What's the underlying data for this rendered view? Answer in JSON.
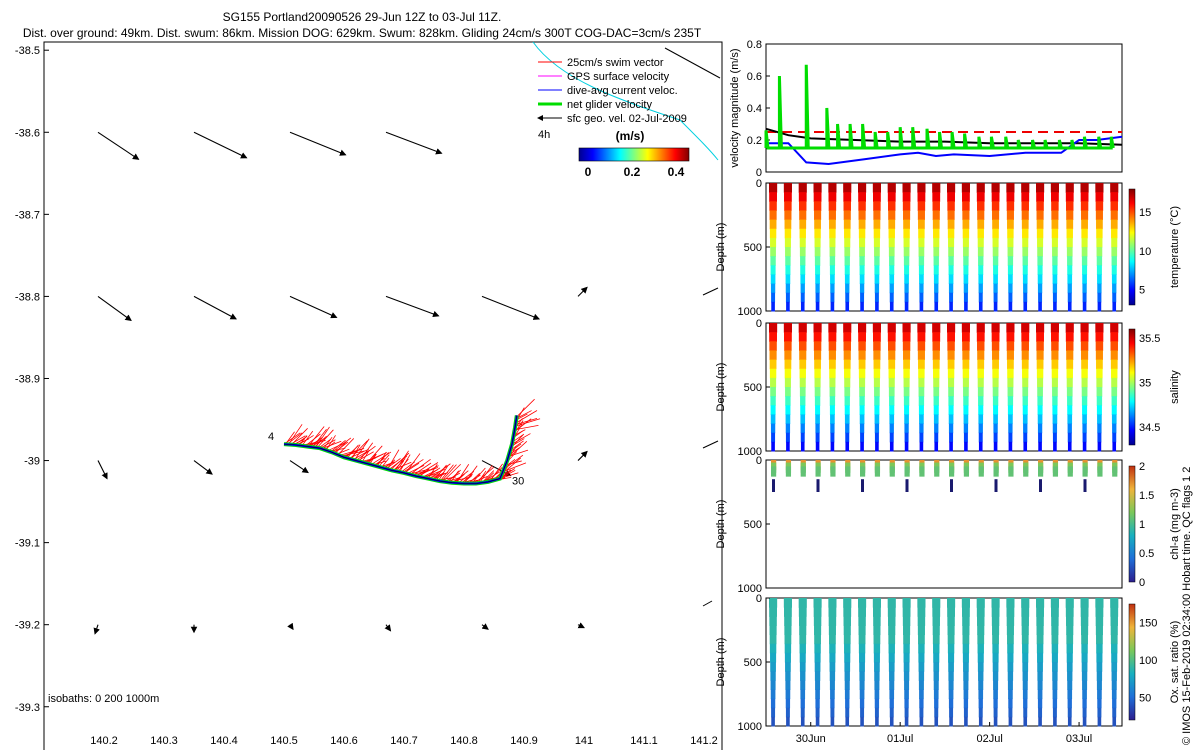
{
  "header": {
    "title": "SG155 Portland20090526 29-Jun 12Z to 03-Jul 11Z.",
    "subtitle": "Dist. over ground: 49km. Dist. swum: 86km. Mission DOG: 629km. Swum: 828km. Gliding 24cm/s 300T COG-DAC=3cm/s 235T"
  },
  "colors": {
    "swim": "#ff0000",
    "gps": "#ff00ff",
    "dac": "#0000ff",
    "net": "#00dd00",
    "geo": "#000000",
    "ref_line": "#ee0000",
    "scale_line": "#00d0e0"
  },
  "chart_data": [
    {
      "type": "scatter",
      "name": "track-map",
      "xlim": [
        140.1,
        141.23
      ],
      "ylim": [
        -39.36,
        -38.49
      ],
      "xticks": [
        140.2,
        140.3,
        140.4,
        140.5,
        140.6,
        140.7,
        140.8,
        140.9,
        141.0,
        141.1,
        141.2
      ],
      "xtick_labels": [
        "140.2",
        "140.3",
        "140.4",
        "140.5",
        "140.6",
        "140.7",
        "140.8",
        "140.9",
        "141",
        "141.1",
        "141.2"
      ],
      "yticks": [
        -38.5,
        -38.6,
        -38.7,
        -38.8,
        -38.9,
        -39.0,
        -39.1,
        -39.2,
        -39.3
      ],
      "ytick_labels": [
        "-38.5",
        "-38.6",
        "-38.7",
        "-38.8",
        "-38.9",
        "-39",
        "-39.1",
        "-39.2",
        "-39.3"
      ],
      "legend": [
        {
          "label": "25cm/s swim vector",
          "color": "#ff0000"
        },
        {
          "label": "GPS surface velocity",
          "color": "#ff00ff"
        },
        {
          "label": "dive-avg current veloc.",
          "color": "#0000ff"
        },
        {
          "label": "net glider velocity",
          "color": "#00dd00"
        },
        {
          "label": "sfc geo. vel. 02-Jul-2009",
          "color": "#000000"
        }
      ],
      "time_scale_label": "4h",
      "colorbar": {
        "title": "(m/s)",
        "ticks": [
          0,
          0.2,
          0.4
        ],
        "tick_labels": [
          "0",
          "0.2",
          "0.4"
        ],
        "range": [
          0,
          0.5
        ]
      },
      "isobaths_label": "isobaths: 0   200   1000m",
      "track_start_label": "4",
      "track_end_label": "30",
      "track": [
        [
          140.5,
          -38.98
        ],
        [
          140.52,
          -38.981
        ],
        [
          140.54,
          -38.983
        ],
        [
          140.56,
          -38.985
        ],
        [
          140.58,
          -38.99
        ],
        [
          140.6,
          -38.996
        ],
        [
          140.62,
          -39.0
        ],
        [
          140.64,
          -39.004
        ],
        [
          140.66,
          -39.008
        ],
        [
          140.68,
          -39.012
        ],
        [
          140.7,
          -39.015
        ],
        [
          140.72,
          -39.019
        ],
        [
          140.74,
          -39.022
        ],
        [
          140.76,
          -39.025
        ],
        [
          140.78,
          -39.027
        ],
        [
          140.8,
          -39.028
        ],
        [
          140.82,
          -39.028
        ],
        [
          140.84,
          -39.026
        ],
        [
          140.86,
          -39.022
        ],
        [
          140.872,
          -39.0
        ],
        [
          140.88,
          -38.98
        ],
        [
          140.885,
          -38.96
        ],
        [
          140.888,
          -38.945
        ]
      ],
      "current_vectors": [
        {
          "lon": 140.19,
          "lat": -38.6,
          "u": 0.27,
          "v": -0.18
        },
        {
          "lon": 140.35,
          "lat": -38.6,
          "u": 0.35,
          "v": -0.17
        },
        {
          "lon": 140.51,
          "lat": -38.6,
          "u": 0.37,
          "v": -0.15
        },
        {
          "lon": 140.67,
          "lat": -38.6,
          "u": 0.37,
          "v": -0.14
        },
        {
          "lon": 140.19,
          "lat": -38.8,
          "u": 0.22,
          "v": -0.16
        },
        {
          "lon": 140.35,
          "lat": -38.8,
          "u": 0.28,
          "v": -0.15
        },
        {
          "lon": 140.51,
          "lat": -38.8,
          "u": 0.31,
          "v": -0.14
        },
        {
          "lon": 140.67,
          "lat": -38.8,
          "u": 0.35,
          "v": -0.13
        },
        {
          "lon": 140.83,
          "lat": -38.8,
          "u": 0.38,
          "v": -0.15
        },
        {
          "lon": 140.99,
          "lat": -38.8,
          "u": 0.06,
          "v": 0.06
        },
        {
          "lon": 140.19,
          "lat": -39.0,
          "u": 0.06,
          "v": -0.12
        },
        {
          "lon": 140.35,
          "lat": -39.0,
          "u": 0.12,
          "v": -0.09
        },
        {
          "lon": 140.51,
          "lat": -39.0,
          "u": 0.12,
          "v": -0.08
        },
        {
          "lon": 140.83,
          "lat": -39.0,
          "u": 0.19,
          "v": -0.1
        },
        {
          "lon": 140.99,
          "lat": -39.0,
          "u": 0.06,
          "v": 0.06
        },
        {
          "lon": 140.19,
          "lat": -39.2,
          "u": -0.02,
          "v": -0.06
        },
        {
          "lon": 140.35,
          "lat": -39.2,
          "u": 0.0,
          "v": -0.05
        },
        {
          "lon": 140.51,
          "lat": -39.2,
          "u": 0.02,
          "v": -0.03
        },
        {
          "lon": 140.67,
          "lat": -39.2,
          "u": 0.03,
          "v": -0.04
        },
        {
          "lon": 140.83,
          "lat": -39.2,
          "u": 0.04,
          "v": -0.03
        },
        {
          "lon": 140.99,
          "lat": -39.2,
          "u": 0.04,
          "v": -0.02
        }
      ]
    },
    {
      "type": "line",
      "name": "velocity-magnitude",
      "ylabel": "velocity magnitude (m/s)",
      "ylim": [
        0,
        0.8
      ],
      "yticks": [
        0,
        0.2,
        0.4,
        0.6,
        0.8
      ],
      "ytick_labels": [
        "0",
        "0.2",
        "0.4",
        "0.6",
        "0.8"
      ],
      "xlim": [
        29.5,
        33.48
      ],
      "series": [
        {
          "name": "swim speed (25cm/s)",
          "color": "#ee0000",
          "dashed": true,
          "x": [
            29.5,
            33.48
          ],
          "values": [
            0.25,
            0.25
          ]
        },
        {
          "name": "geostrophic",
          "color": "#000000",
          "x": [
            29.5,
            29.75,
            30.0,
            30.5,
            31.0,
            31.5,
            32.0,
            32.5,
            33.0,
            33.48
          ],
          "values": [
            0.27,
            0.23,
            0.21,
            0.2,
            0.19,
            0.19,
            0.18,
            0.18,
            0.18,
            0.17
          ]
        },
        {
          "name": "dive-avg current",
          "color": "#0000ff",
          "x": [
            29.5,
            29.75,
            29.95,
            30.2,
            30.6,
            31.0,
            31.2,
            31.4,
            31.6,
            32.0,
            32.4,
            32.8,
            33.0,
            33.2,
            33.48
          ],
          "values": [
            0.18,
            0.18,
            0.06,
            0.05,
            0.08,
            0.11,
            0.12,
            0.1,
            0.11,
            0.1,
            0.12,
            0.12,
            0.2,
            0.2,
            0.22
          ]
        },
        {
          "name": "net glider velocity",
          "color": "#00dd00",
          "spikes": [
            [
              29.5,
              0.26
            ],
            [
              29.65,
              0.6
            ],
            [
              29.95,
              0.67
            ],
            [
              30.18,
              0.4
            ],
            [
              30.3,
              0.3
            ],
            [
              30.44,
              0.3
            ],
            [
              30.58,
              0.3
            ],
            [
              30.72,
              0.25
            ],
            [
              30.86,
              0.25
            ],
            [
              31.0,
              0.28
            ],
            [
              31.14,
              0.28
            ],
            [
              31.3,
              0.27
            ],
            [
              31.44,
              0.25
            ],
            [
              31.58,
              0.25
            ],
            [
              31.72,
              0.24
            ],
            [
              31.88,
              0.22
            ],
            [
              32.02,
              0.22
            ],
            [
              32.18,
              0.22
            ],
            [
              32.32,
              0.2
            ],
            [
              32.48,
              0.2
            ],
            [
              32.62,
              0.2
            ],
            [
              32.78,
              0.2
            ],
            [
              32.92,
              0.2
            ],
            [
              33.06,
              0.22
            ],
            [
              33.22,
              0.22
            ],
            [
              33.36,
              0.22
            ]
          ]
        }
      ]
    },
    {
      "type": "heatmap",
      "name": "temperature-section",
      "variable": "temperature",
      "ylabel": "Depth (m)",
      "ylim": [
        0,
        1000
      ],
      "yticks": [
        0,
        500,
        1000
      ],
      "ytick_labels": [
        "0",
        "500",
        "1000"
      ],
      "clim": [
        3,
        18
      ],
      "cticks": [
        5,
        10,
        15
      ],
      "ctick_labels": [
        "5",
        "10",
        "15"
      ],
      "clabel": "temperature (°C)"
    },
    {
      "type": "heatmap",
      "name": "salinity-section",
      "variable": "salinity",
      "ylabel": "Depth (m)",
      "ylim": [
        0,
        1000
      ],
      "yticks": [
        0,
        500,
        1000
      ],
      "ytick_labels": [
        "0",
        "500",
        "1000"
      ],
      "clim": [
        34.3,
        35.6
      ],
      "cticks": [
        34.5,
        35,
        35.5
      ],
      "ctick_labels": [
        "34.5",
        "35",
        "35.5"
      ],
      "clabel": "salinity"
    },
    {
      "type": "heatmap",
      "name": "chla-section",
      "variable": "chl-a",
      "ylabel": "Depth (m)",
      "ylim": [
        0,
        1000
      ],
      "yticks": [
        0,
        500,
        1000
      ],
      "ytick_labels": [
        "0",
        "500",
        "1000"
      ],
      "clim": [
        0,
        2
      ],
      "cticks": [
        0,
        0.5,
        1,
        1.5,
        2
      ],
      "ctick_labels": [
        "0",
        "0.5",
        "1",
        "1.5",
        "2"
      ],
      "clabel": "chl-a (mg m-3)"
    },
    {
      "type": "heatmap",
      "name": "oxygen-section",
      "variable": "oxygen saturation",
      "ylabel": "Depth (m)",
      "ylim": [
        0,
        1000
      ],
      "yticks": [
        0,
        500,
        1000
      ],
      "ytick_labels": [
        "0",
        "500",
        "1000"
      ],
      "clim": [
        20,
        175
      ],
      "cticks": [
        50,
        100,
        150
      ],
      "ctick_labels": [
        "50",
        "100",
        "150"
      ],
      "clabel": "Ox. sat. ratio (%)",
      "xticks": [
        30,
        31,
        32,
        33
      ],
      "xtick_labels": [
        "30Jun",
        "01Jul",
        "02Jul",
        "03Jul"
      ]
    }
  ],
  "profiles": {
    "count": 24,
    "day_start": 29.5,
    "day_end": 33.48,
    "bottom_depth": 1000
  },
  "footer": {
    "credit": "© IMOS 15-Feb-2019 02:34:00 Hobart time. QC flags 1  2"
  }
}
